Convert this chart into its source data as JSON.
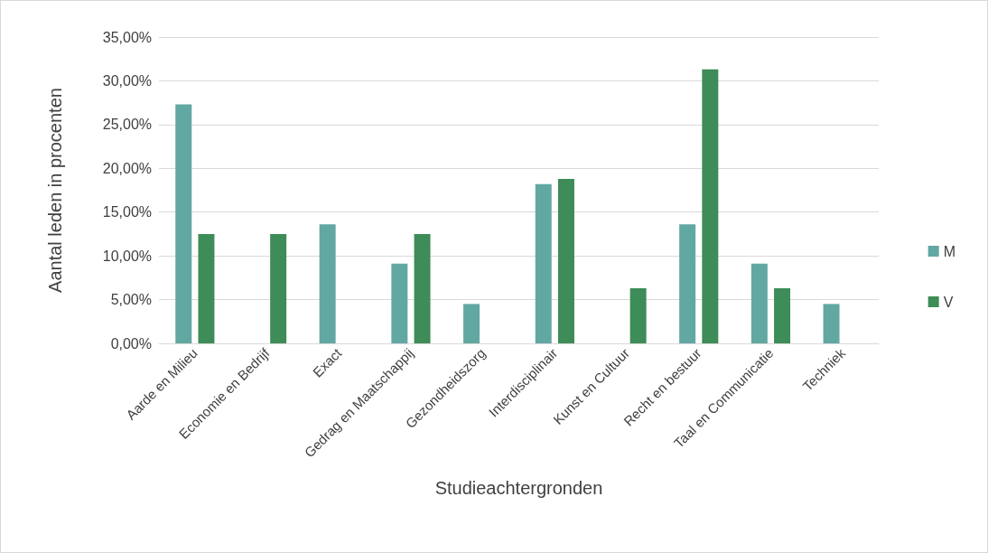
{
  "chart_data": {
    "type": "bar",
    "xlabel": "Studieachtergronden",
    "ylabel": "Aantal leden in procenten",
    "categories": [
      "Aarde en Milieu",
      "Economie en Bedrijf",
      "Exact",
      "Gedrag en Maatschappij",
      "Gezondheidszorg",
      "Interdisciplinair",
      "Kunst en Cultuur",
      "Recht en bestuur",
      "Taal en Communicatie",
      "Techniek"
    ],
    "series": [
      {
        "name": "M",
        "color": "#62a8a2",
        "values": [
          27.3,
          0,
          13.6,
          9.1,
          4.5,
          18.2,
          0,
          13.6,
          9.1,
          4.5
        ]
      },
      {
        "name": "V",
        "color": "#3e8c57",
        "values": [
          12.5,
          12.5,
          0,
          12.5,
          0,
          18.8,
          6.3,
          31.3,
          6.3,
          0
        ]
      }
    ],
    "ylim": [
      0,
      35
    ],
    "yticks": [
      {
        "value": 0,
        "label": "0,00%"
      },
      {
        "value": 5,
        "label": "5,00%"
      },
      {
        "value": 10,
        "label": "10,00%"
      },
      {
        "value": 15,
        "label": "15,00%"
      },
      {
        "value": 20,
        "label": "20,00%"
      },
      {
        "value": 25,
        "label": "25,00%"
      },
      {
        "value": 30,
        "label": "30,00%"
      },
      {
        "value": 35,
        "label": "35,00%"
      }
    ],
    "grid": "y",
    "legend": "right"
  }
}
